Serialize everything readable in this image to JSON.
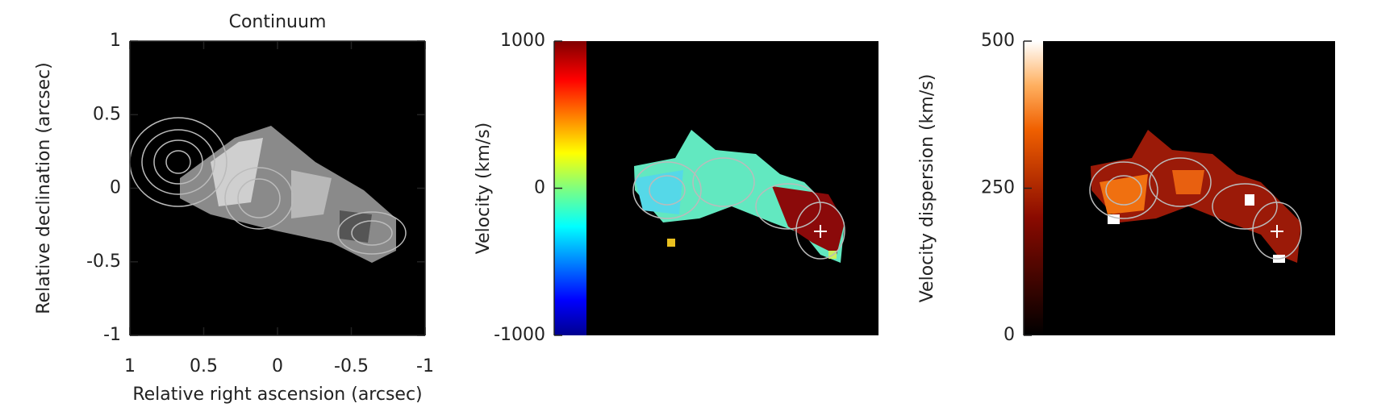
{
  "chart_data": [
    {
      "type": "image",
      "title": "Continuum",
      "xlabel": "Relative right ascension (arcsec)",
      "ylabel": "Relative declination (arcsec)",
      "xlim": [
        1,
        -1
      ],
      "xticks": [
        1,
        0.5,
        0,
        -0.5,
        -1
      ],
      "ylim": [
        -1,
        1
      ],
      "yticks": [
        -1,
        -0.5,
        0,
        0.5,
        1
      ]
    },
    {
      "type": "image",
      "ylabel": "Velocity (km/s)",
      "colormap": "jet",
      "ylim": [
        -1000,
        1000
      ],
      "yticks": [
        -1000,
        0,
        1000
      ]
    },
    {
      "type": "image",
      "ylabel": "Velocity dispersion (km/s)",
      "colormap": "heat",
      "ylim": [
        0,
        500
      ],
      "yticks": [
        0,
        250,
        500
      ]
    }
  ]
}
